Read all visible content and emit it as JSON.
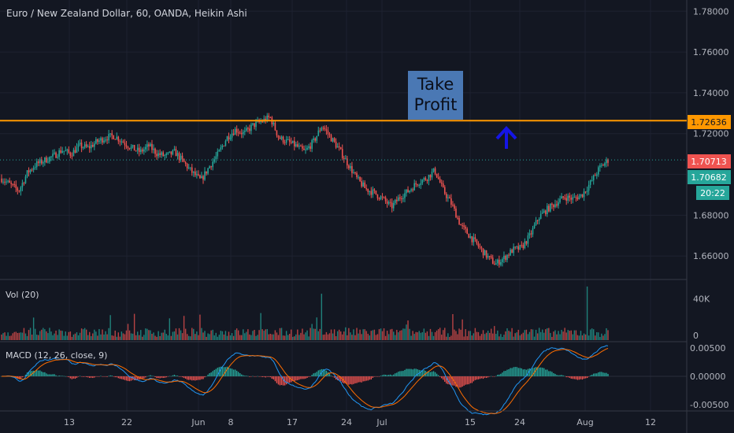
{
  "colors": {
    "background": "#131722",
    "grid": "#1e2230",
    "axis_text": "#b2b5be",
    "up": "#26a69a",
    "down": "#ef5350",
    "orange": "#ff9800",
    "blue_arrow": "#1515e6",
    "note_box": "#4a78b4",
    "macd_line": "#2196f3",
    "signal_line": "#ff6d00"
  },
  "header": {
    "title": "Euro / New Zealand Dollar, 60, OANDA, Heikin Ashi"
  },
  "annotation": {
    "line1": "Take",
    "line2": "Profit",
    "arrow_icon": "up-arrow-icon"
  },
  "price_labels": {
    "take_profit": "1.72636",
    "last_price": "1.70713",
    "bid": "1.70682",
    "countdown": "20:22"
  },
  "panes": {
    "volume": {
      "label": "Vol (20)",
      "ticks": [
        "40K",
        "0"
      ]
    },
    "macd": {
      "label": "MACD (12, 26, close, 9)",
      "ticks": [
        "0.00500",
        "0.00000",
        "-0.00500"
      ]
    }
  },
  "chart_data": [
    {
      "type": "candlestick",
      "title": "Euro / New Zealand Dollar, 60, OANDA, Heikin Ashi",
      "y_ticks": [
        "1.78000",
        "1.76000",
        "1.74000",
        "1.72000",
        "1.70000",
        "1.68000",
        "1.66000"
      ],
      "y_range": [
        1.6485,
        1.7855
      ],
      "x_ticks": [
        "13",
        "22",
        "Jun",
        "8",
        "17",
        "24",
        "Jul",
        "15",
        "24",
        "Aug",
        "12"
      ],
      "horizontal_line": 1.72636,
      "last_price": 1.70713,
      "price_path": [
        1.698,
        1.695,
        1.692,
        1.701,
        1.705,
        1.707,
        1.709,
        1.712,
        1.71,
        1.714,
        1.713,
        1.716,
        1.718,
        1.719,
        1.716,
        1.713,
        1.711,
        1.714,
        1.71,
        1.709,
        1.711,
        1.706,
        1.701,
        1.697,
        1.704,
        1.71,
        1.718,
        1.722,
        1.72,
        1.724,
        1.726,
        1.728,
        1.718,
        1.716,
        1.714,
        1.711,
        1.716,
        1.724,
        1.718,
        1.712,
        1.705,
        1.698,
        1.693,
        1.691,
        1.688,
        1.684,
        1.689,
        1.692,
        1.696,
        1.698,
        1.702,
        1.692,
        1.685,
        1.675,
        1.67,
        1.665,
        1.66,
        1.656,
        1.659,
        1.663,
        1.664,
        1.67,
        1.679,
        1.683,
        1.686,
        1.689,
        1.688,
        1.69,
        1.696,
        1.703,
        1.707
      ]
    },
    {
      "type": "bar",
      "title": "Vol (20)",
      "ylim": [
        0,
        55000
      ],
      "y_ticks": [
        "40K",
        "0"
      ]
    },
    {
      "type": "line",
      "title": "MACD (12, 26, close, 9)",
      "ylim": [
        -0.0058,
        0.0058
      ],
      "y_ticks": [
        "0.00500",
        "0.00000",
        "-0.00500"
      ]
    }
  ]
}
